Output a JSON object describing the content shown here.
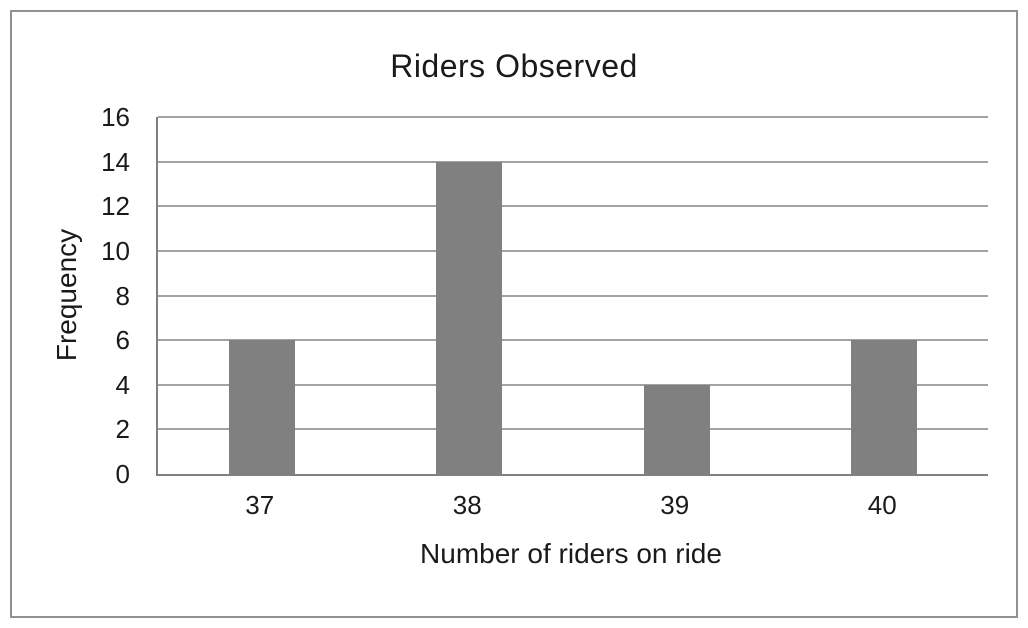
{
  "chart_data": {
    "type": "bar",
    "title": "Riders Observed",
    "xlabel": "Number of riders on ride",
    "ylabel": "Frequency",
    "categories": [
      "37",
      "38",
      "39",
      "40"
    ],
    "values": [
      6,
      14,
      4,
      6
    ],
    "ylim": [
      0,
      16
    ],
    "ytick_step": 2,
    "yticks": [
      0,
      2,
      4,
      6,
      8,
      10,
      12,
      14,
      16
    ],
    "grid": true,
    "legend": "none",
    "bar_color": "#808080",
    "gridline_color": "#a3a3a3",
    "axis_color": "#808080",
    "border_color": "#919191"
  }
}
